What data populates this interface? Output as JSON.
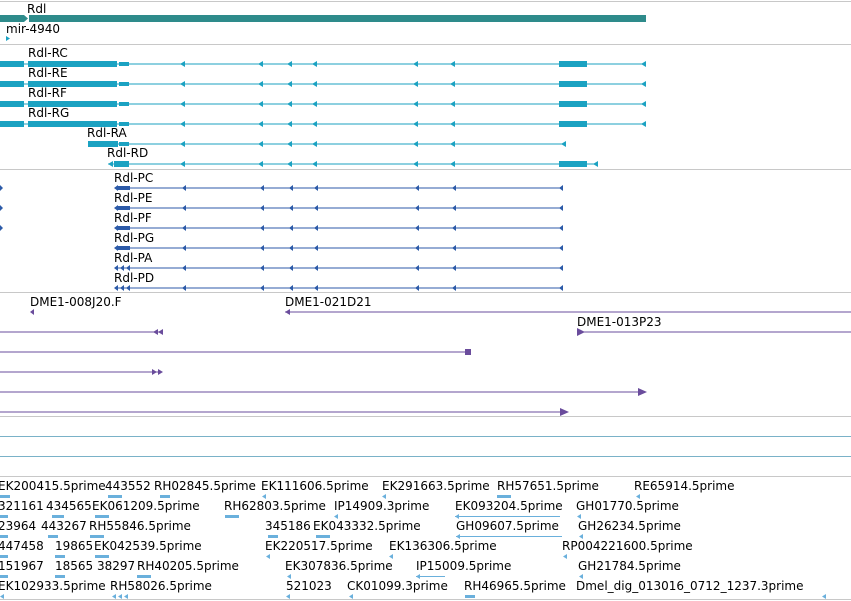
{
  "colors": {
    "gene": "#2e8b8b",
    "transcript": "#1ba2c2",
    "protein": "#2c5aa8",
    "clone": "#6a4c9c",
    "est": "#6ab0dc",
    "divider": "#c8c8c8",
    "empty_track": "#7ab2c8"
  },
  "labels": {
    "gene": "Rdl",
    "mirna": "mir-4940",
    "transcripts": [
      "Rdl-RC",
      "Rdl-RE",
      "Rdl-RF",
      "Rdl-RG",
      "Rdl-RA",
      "Rdl-RD"
    ],
    "proteins": [
      "Rdl-PC",
      "Rdl-PE",
      "Rdl-PF",
      "Rdl-PG",
      "Rdl-PA",
      "Rdl-PD"
    ],
    "clones": [
      "DME1-008J20.F",
      "DME1-021D21",
      "DME1-013P23"
    ]
  },
  "est_rows": [
    [
      "EK200415.5prime",
      "443552",
      "RH02845.5prime",
      "EK111606.5prime",
      "EK291663.5prime",
      "RH57651.5prime",
      "RE65914.5prime"
    ],
    [
      "321161",
      "434565",
      "EK061209.5prime",
      "RH62803.5prime",
      "IP14909.3prime",
      "EK093204.5prime",
      "GH01770.5prime"
    ],
    [
      "23964",
      "443267",
      "RH55846.5prime",
      "345186",
      "EK043332.5prime",
      "GH09607.5prime",
      "GH26234.5prime"
    ],
    [
      "447458",
      "19865",
      "EK042539.5prime",
      "EK220517.5prime",
      "EK136306.5prime",
      "RP004221600.5prime"
    ],
    [
      "151967",
      "18565",
      "38297",
      "RH40205.5prime",
      "EK307836.5prime",
      "IP15009.5prime",
      "GH21784.5prime"
    ],
    [
      "EK102933.5prime",
      "RH58026.5prime",
      "521023",
      "CK01099.3prime",
      "RH46965.5prime",
      "Dmel_dig_013016_0712_1237.3prime"
    ]
  ]
}
